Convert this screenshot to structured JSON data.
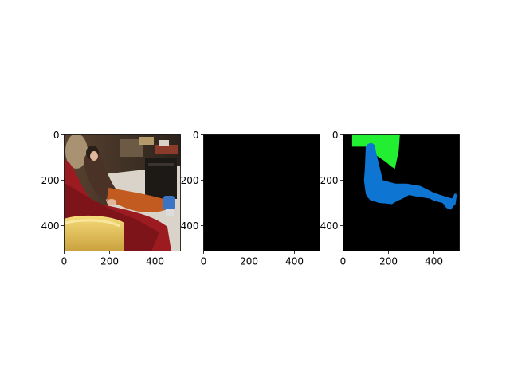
{
  "chart_data": [
    {
      "type": "image",
      "title": "",
      "xlabel": "",
      "ylabel": "",
      "xlim": [
        0,
        512
      ],
      "ylim": [
        512,
        0
      ],
      "xticks": [
        0,
        200,
        400
      ],
      "yticks": [
        0,
        200,
        400
      ],
      "content": "photo-person-reclining-on-red-sofa",
      "colors": {
        "background": "#3a2a20",
        "sofa": "#9c1c20",
        "cushion": "#e9c65a",
        "trousers": "#c05a1e",
        "jacket": "#4a3326",
        "cabinet": "#1e1a18",
        "floor": "#d8d2c8",
        "skin": "#e0b79a"
      }
    },
    {
      "type": "image",
      "title": "",
      "xlabel": "",
      "ylabel": "",
      "xlim": [
        0,
        512
      ],
      "ylim": [
        512,
        0
      ],
      "xticks": [
        0,
        200,
        400
      ],
      "yticks": [
        0,
        200,
        400
      ],
      "content": "solid-black",
      "colors": {
        "fill": "#000000"
      }
    },
    {
      "type": "image",
      "title": "",
      "xlabel": "",
      "ylabel": "",
      "xlim": [
        0,
        512
      ],
      "ylim": [
        512,
        0
      ],
      "xticks": [
        0,
        200,
        400
      ],
      "yticks": [
        0,
        200,
        400
      ],
      "content": "segmentation-mask",
      "colors": {
        "background": "#000000",
        "region_a": "#22ef32",
        "region_b": "#0e76d2"
      },
      "regions": [
        {
          "name": "region-a",
          "color": "#22ef32",
          "polygon": [
            [
              40,
              0
            ],
            [
              250,
              0
            ],
            [
              245,
              70
            ],
            [
              228,
              150
            ],
            [
              210,
              138
            ],
            [
              190,
              120
            ],
            [
              145,
              90
            ],
            [
              112,
              52
            ],
            [
              40,
              52
            ]
          ]
        },
        {
          "name": "region-b",
          "color": "#0e76d2",
          "polygon": [
            [
              100,
              50
            ],
            [
              110,
              40
            ],
            [
              125,
              35
            ],
            [
              140,
              45
            ],
            [
              145,
              75
            ],
            [
              175,
              200
            ],
            [
              230,
              215
            ],
            [
              280,
              215
            ],
            [
              340,
              225
            ],
            [
              400,
              255
            ],
            [
              460,
              275
            ],
            [
              480,
              280
            ],
            [
              490,
              260
            ],
            [
              498,
              258
            ],
            [
              500,
              270
            ],
            [
              495,
              305
            ],
            [
              485,
              315
            ],
            [
              475,
              330
            ],
            [
              455,
              322
            ],
            [
              438,
              300
            ],
            [
              400,
              290
            ],
            [
              380,
              280
            ],
            [
              325,
              272
            ],
            [
              290,
              265
            ],
            [
              260,
              282
            ],
            [
              240,
              290
            ],
            [
              215,
              305
            ],
            [
              185,
              302
            ],
            [
              160,
              300
            ],
            [
              120,
              288
            ],
            [
              108,
              275
            ],
            [
              100,
              260
            ],
            [
              92,
              200
            ],
            [
              96,
              150
            ],
            [
              98,
              100
            ]
          ]
        }
      ]
    }
  ]
}
